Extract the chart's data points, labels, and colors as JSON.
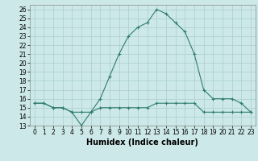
{
  "xlabel": "Humidex (Indice chaleur)",
  "x": [
    0,
    1,
    2,
    3,
    4,
    5,
    6,
    7,
    8,
    9,
    10,
    11,
    12,
    13,
    14,
    15,
    16,
    17,
    18,
    19,
    20,
    21,
    22,
    23
  ],
  "curve1": [
    15.5,
    15.5,
    15.0,
    15.0,
    14.5,
    13.0,
    14.5,
    16.0,
    18.5,
    21.0,
    23.0,
    24.0,
    24.5,
    26.0,
    25.5,
    24.5,
    23.5,
    21.0,
    17.0,
    16.0,
    16.0,
    16.0,
    15.5,
    14.5
  ],
  "curve2": [
    15.5,
    15.5,
    15.0,
    15.0,
    14.5,
    14.5,
    14.5,
    15.0,
    15.0,
    15.0,
    15.0,
    15.0,
    15.0,
    15.5,
    15.5,
    15.5,
    15.5,
    15.5,
    14.5,
    14.5,
    14.5,
    14.5,
    14.5,
    14.5
  ],
  "line_color": "#2e7d6e",
  "bg_color": "#cce8e8",
  "grid_color": "#aacece",
  "ylim": [
    13,
    26.5
  ],
  "yticks": [
    13,
    14,
    15,
    16,
    17,
    18,
    19,
    20,
    21,
    22,
    23,
    24,
    25,
    26
  ],
  "xticks": [
    0,
    1,
    2,
    3,
    4,
    5,
    6,
    7,
    8,
    9,
    10,
    11,
    12,
    13,
    14,
    15,
    16,
    17,
    18,
    19,
    20,
    21,
    22,
    23
  ],
  "tick_fontsize": 5.5,
  "xlabel_fontsize": 7.0
}
